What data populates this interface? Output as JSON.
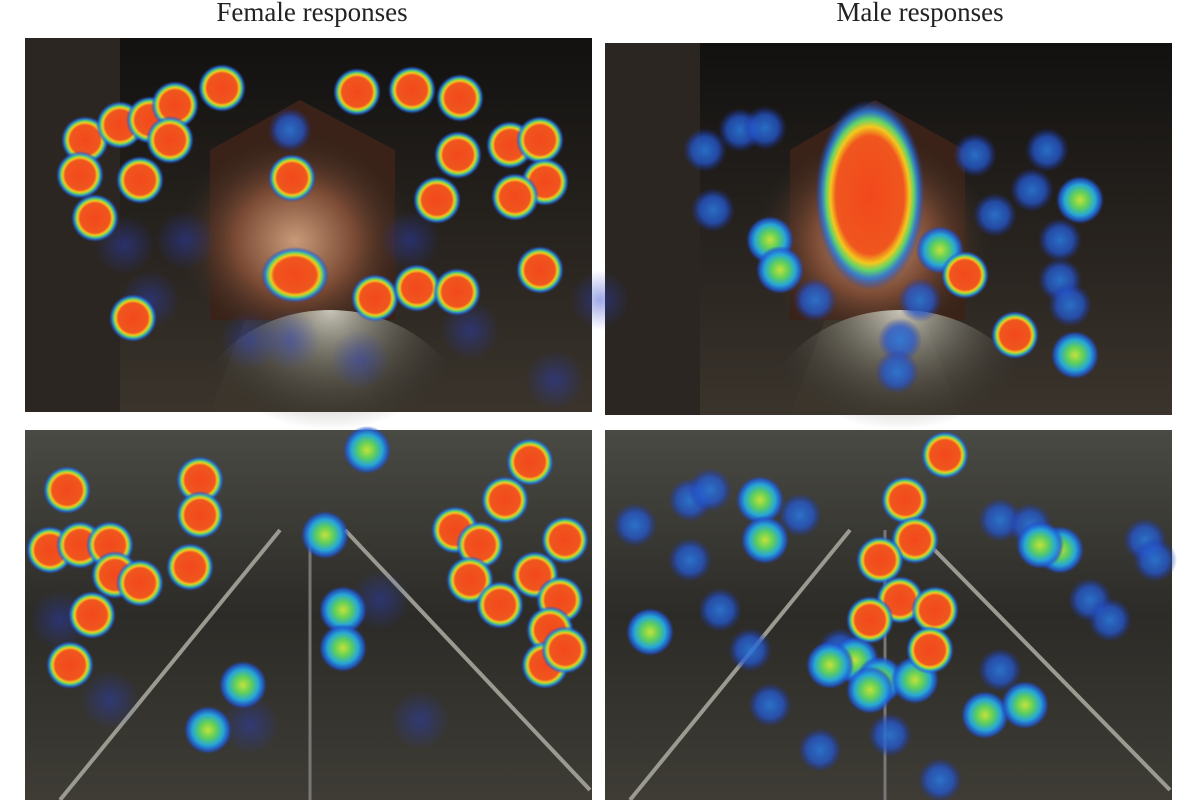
{
  "header": {
    "columns": [
      "Female responses",
      "Male responses"
    ]
  }
}
